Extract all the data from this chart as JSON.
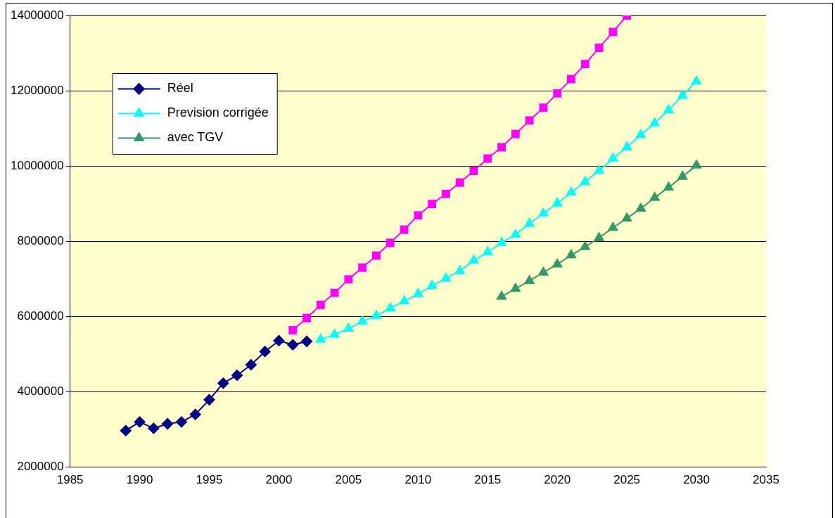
{
  "chart_data": {
    "type": "line",
    "xlim": [
      1985,
      2035
    ],
    "xticks": [
      1985,
      1990,
      1995,
      2000,
      2005,
      2010,
      2015,
      2020,
      2025,
      2030,
      2035
    ],
    "ylim": [
      2000000,
      14000000
    ],
    "yticks": [
      2000000,
      4000000,
      6000000,
      8000000,
      10000000,
      12000000,
      14000000
    ],
    "grid": "y",
    "legend": "top left",
    "line_style": "solid",
    "series": [
      {
        "name": "Réel",
        "color": "#000080",
        "marker": "diamond",
        "x": [
          1989,
          1990,
          1991,
          1992,
          1993,
          1994,
          1995,
          1996,
          1997,
          1998,
          1999,
          2000,
          2001,
          2002
        ],
        "values": [
          2970000,
          3200000,
          3030000,
          3150000,
          3200000,
          3400000,
          3790000,
          4230000,
          4440000,
          4720000,
          5070000,
          5360000,
          5250000,
          5340000
        ]
      },
      {
        "color": "#ff00ff",
        "marker": "square",
        "x": [
          2001,
          2002,
          2003,
          2004,
          2005,
          2006,
          2007,
          2008,
          2009,
          2010,
          2011,
          2012,
          2013,
          2014,
          2015,
          2016,
          2017,
          2018,
          2019,
          2020,
          2021,
          2022,
          2023,
          2024,
          2025
        ],
        "values": [
          5640000,
          5960000,
          6310000,
          6630000,
          6990000,
          7300000,
          7620000,
          7960000,
          8310000,
          8690000,
          8990000,
          9260000,
          9560000,
          9870000,
          10200000,
          10500000,
          10850000,
          11210000,
          11550000,
          11930000,
          12310000,
          12710000,
          13140000,
          13560000,
          14000000
        ]
      },
      {
        "name": "Prevision corrigée",
        "color": "#00ffff",
        "marker": "triangle",
        "x": [
          2003,
          2004,
          2005,
          2006,
          2007,
          2008,
          2009,
          2010,
          2011,
          2012,
          2013,
          2014,
          2015,
          2016,
          2017,
          2018,
          2019,
          2020,
          2021,
          2022,
          2023,
          2024,
          2025,
          2026,
          2027,
          2028,
          2029,
          2030
        ],
        "values": [
          5390000,
          5520000,
          5680000,
          5870000,
          6020000,
          6220000,
          6410000,
          6600000,
          6820000,
          7010000,
          7210000,
          7490000,
          7710000,
          7960000,
          8180000,
          8470000,
          8740000,
          9010000,
          9300000,
          9580000,
          9880000,
          10200000,
          10500000,
          10830000,
          11140000,
          11490000,
          11870000,
          12250000
        ]
      },
      {
        "name": "avec TGV",
        "color": "#339966",
        "marker": "triangle",
        "x": [
          2016,
          2017,
          2018,
          2019,
          2020,
          2021,
          2022,
          2023,
          2024,
          2025,
          2026,
          2027,
          2028,
          2029,
          2030
        ],
        "values": [
          6530000,
          6740000,
          6950000,
          7170000,
          7390000,
          7630000,
          7850000,
          8090000,
          8360000,
          8610000,
          8870000,
          9160000,
          9430000,
          9720000,
          10020000
        ]
      }
    ]
  }
}
